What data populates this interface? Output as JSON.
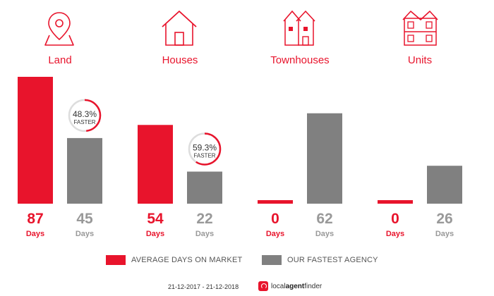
{
  "chart_data": {
    "type": "bar",
    "categories": [
      "Land",
      "Houses",
      "Townhouses",
      "Units"
    ],
    "series": [
      {
        "name": "AVERAGE DAYS ON MARKET",
        "values": [
          87,
          54,
          0,
          0
        ]
      },
      {
        "name": "OUR FASTEST AGENCY",
        "values": [
          45,
          22,
          62,
          26
        ]
      }
    ],
    "value_unit_label": "Days",
    "faster_badges": [
      {
        "category": "Land",
        "percent_text": "48.3%",
        "label": "FASTER",
        "fraction": 0.483
      },
      {
        "category": "Houses",
        "percent_text": "59.3%",
        "label": "FASTER",
        "fraction": 0.593
      }
    ],
    "category_icons": [
      "map-pin-icon",
      "house-icon",
      "townhouses-icon",
      "units-icon"
    ],
    "ylim": [
      0,
      87
    ],
    "grid": false,
    "legend_position": "bottom"
  },
  "colors": {
    "primary": "#e8142c",
    "secondary": "#808080",
    "label_grey": "#999999"
  },
  "footer": {
    "date_range": "21-12-2017 - 21-12-2018",
    "brand_light": "local",
    "brand_bold": "agent",
    "brand_tail": "finder"
  }
}
